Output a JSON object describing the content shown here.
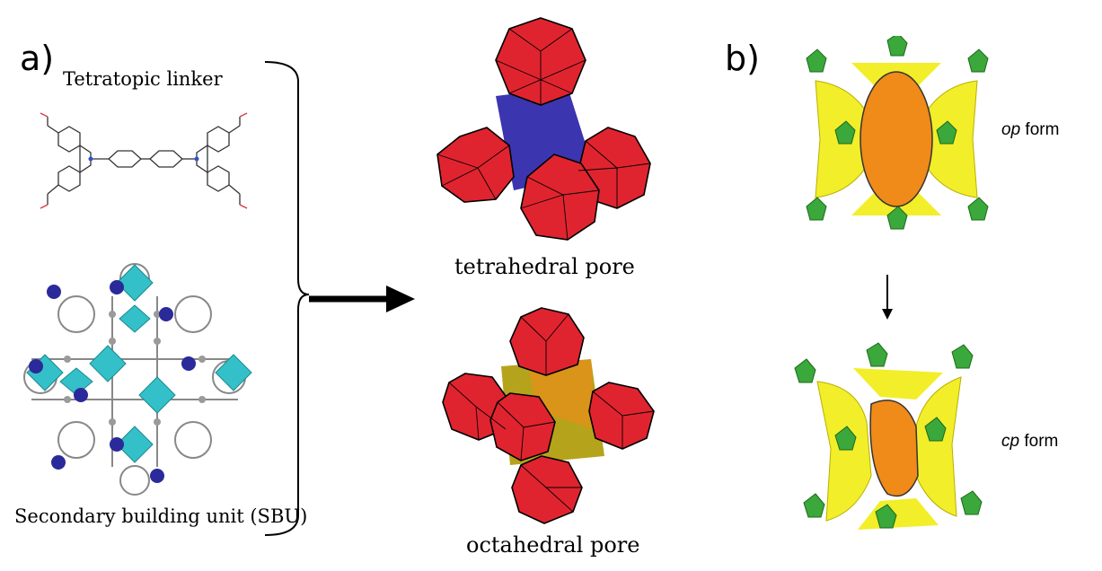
{
  "panel_a": {
    "letter": "a)",
    "linker_caption": "Tetratopic linker",
    "sbu_caption": "Secondary building unit (SBU)",
    "tetrahedral_caption": "tetrahedral pore",
    "octahedral_caption": "octahedral pore"
  },
  "panel_b": {
    "letter": "b)",
    "op_prefix": "op",
    "op_suffix": " form",
    "cp_prefix": "cp",
    "cp_suffix": " form"
  },
  "colors": {
    "cage_red": "#e0242f",
    "tetra_core_blue": "#3b35b0",
    "octa_core_yellow": "#b6a31c",
    "sbu_cyan": "#34c0c8",
    "metal_blue": "#2a2a9a",
    "surface_yellow": "#f2ee2a",
    "surface_orange": "#f08a18",
    "node_green": "#3aa83a"
  },
  "icons": [
    "linker-molecule-icon",
    "sbu-framework-icon",
    "tetrahedral-pore-icon",
    "octahedral-pore-icon",
    "op-form-icon",
    "cp-form-icon",
    "arrow-right-icon",
    "arrow-down-icon"
  ]
}
